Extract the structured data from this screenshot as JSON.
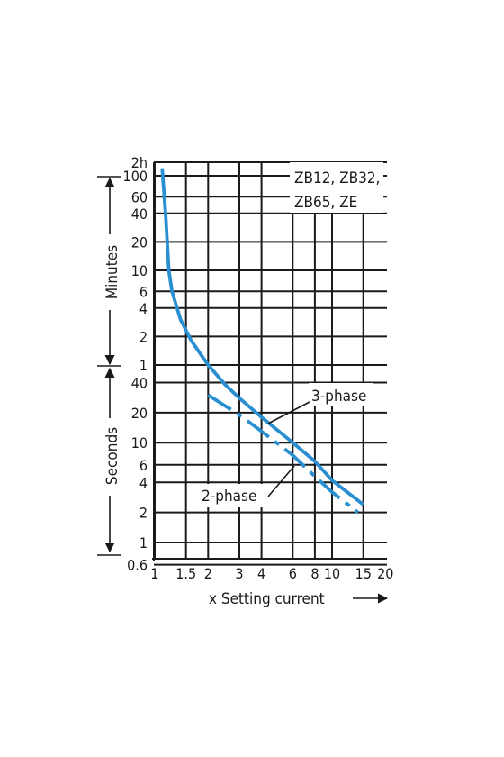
{
  "chart_data": {
    "type": "line",
    "xlabel": "x Setting current",
    "x_scale": "log",
    "xlim": [
      1,
      20
    ],
    "x_ticks": [
      "1",
      "1.5",
      "2",
      "3",
      "4",
      "6",
      "8",
      "10",
      "15",
      "20"
    ],
    "x_tick_values": [
      1,
      1.5,
      2,
      3,
      4,
      6,
      8,
      10,
      15,
      20
    ],
    "y_scale": "log",
    "y_unit_base": "seconds",
    "ylim_seconds": [
      0.6,
      7200
    ],
    "y_ticks": [
      {
        "label": "2h",
        "seconds": 7200
      },
      {
        "label": "100",
        "seconds": 6000
      },
      {
        "label": "60",
        "seconds": 3600
      },
      {
        "label": "40",
        "seconds": 2400
      },
      {
        "label": "20",
        "seconds": 1200
      },
      {
        "label": "10",
        "seconds": 600
      },
      {
        "label": "6",
        "seconds": 360
      },
      {
        "label": "4",
        "seconds": 240
      },
      {
        "label": "2",
        "seconds": 120
      },
      {
        "label": "1",
        "seconds": 60
      },
      {
        "label": "40",
        "seconds": 40
      },
      {
        "label": "20",
        "seconds": 20
      },
      {
        "label": "10",
        "seconds": 10
      },
      {
        "label": "6",
        "seconds": 6
      },
      {
        "label": "4",
        "seconds": 4
      },
      {
        "label": "2",
        "seconds": 2
      },
      {
        "label": "1",
        "seconds": 1
      },
      {
        "label": "0.6",
        "seconds": 0.6
      }
    ],
    "y_group_labels": {
      "upper": "Minutes",
      "lower": "Seconds"
    },
    "legend_box": [
      "ZB12, ZB32,",
      "ZB65, ZE"
    ],
    "line_color": "#2a8fd0",
    "series": [
      {
        "name": "3-phase",
        "style": "solid",
        "points": [
          [
            1.1,
            7200
          ],
          [
            1.15,
            2400
          ],
          [
            1.2,
            600
          ],
          [
            1.25,
            360
          ],
          [
            1.4,
            180
          ],
          [
            1.6,
            110
          ],
          [
            2,
            60
          ],
          [
            2.5,
            38
          ],
          [
            3,
            28
          ],
          [
            4,
            18
          ],
          [
            6,
            10
          ],
          [
            8,
            6.5
          ],
          [
            10,
            4.2
          ],
          [
            15,
            2.4
          ]
        ]
      },
      {
        "name": "2-phase",
        "style": "dash-dot",
        "points": [
          [
            2,
            30
          ],
          [
            3,
            19
          ],
          [
            4,
            13
          ],
          [
            6,
            7.5
          ],
          [
            8,
            4.6
          ],
          [
            10,
            3.2
          ],
          [
            14,
            2
          ]
        ]
      }
    ]
  }
}
